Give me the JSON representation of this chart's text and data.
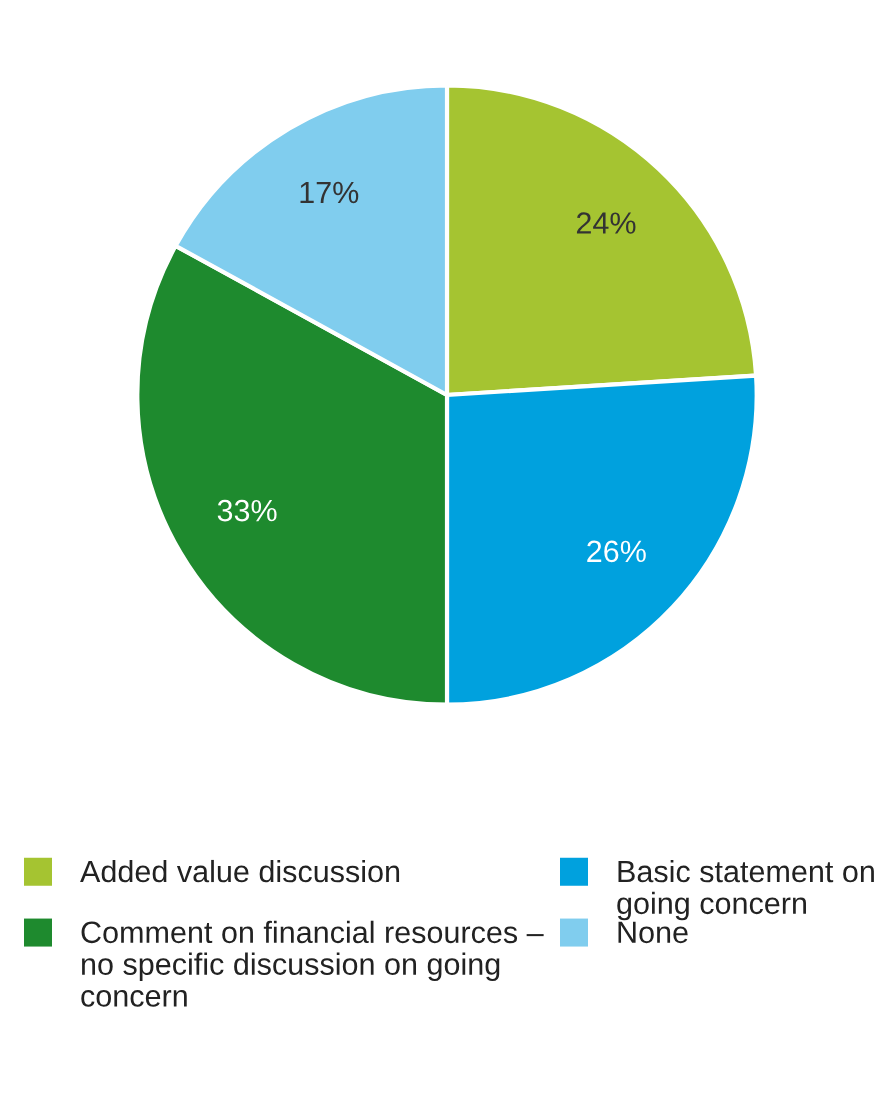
{
  "chart_data": {
    "type": "pie",
    "categories": [
      "Added value discussion",
      "Basic statement on going concern",
      "Comment on financial resources – no specific discussion on going concern",
      "None"
    ],
    "values": [
      24,
      26,
      33,
      17
    ],
    "colors": [
      "#a5c431",
      "#00a1de",
      "#1e8a2e",
      "#80cdee"
    ],
    "value_labels": [
      "24%",
      "26%",
      "33%",
      "17%"
    ],
    "legend": "bottom"
  }
}
